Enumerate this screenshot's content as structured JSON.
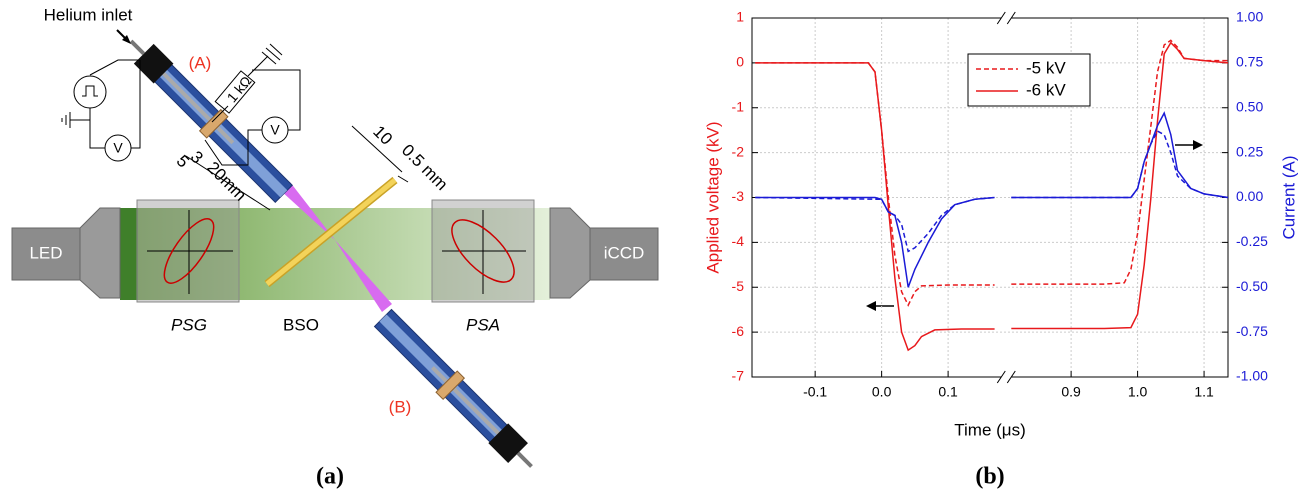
{
  "diagram": {
    "helium_inlet": "Helium inlet",
    "jet_a": "(A)",
    "jet_b": "(B)",
    "resistor": "1 kΩ",
    "voltmeter_left": "V",
    "voltmeter_right": "V",
    "dims": [
      "5",
      "3",
      "20mm"
    ],
    "plate_dims": [
      "10",
      "0.5 mm"
    ],
    "led": "LED",
    "iccd": "iCCD",
    "psg": "PSG",
    "bso": "BSO",
    "psa": "PSA"
  },
  "captions": [
    "(a)",
    "(b)"
  ],
  "chart_data": {
    "type": "line",
    "xlabel": "Time (μs)",
    "ylabel": "Applied voltage (kV)",
    "y2label": "Current (A)",
    "xlim": [
      -0.195,
      1.136
    ],
    "xbreak": [
      0.18,
      0.81
    ],
    "xticks": [
      -0.1,
      {
        "value": 0,
        "label": "0.0"
      },
      0.1,
      0.9,
      {
        "value": 1,
        "label": "1.0"
      },
      1.1
    ],
    "ylim": [
      -7,
      1
    ],
    "yticks": [
      1,
      0,
      -1,
      -2,
      -3,
      -4,
      -5,
      -6,
      -7
    ],
    "y2lim": [
      -1,
      1
    ],
    "y2ticks": [
      {
        "value": 1,
        "label": "1.00"
      },
      {
        "value": 0.75,
        "label": "0.75"
      },
      {
        "value": 0.5,
        "label": "0.50"
      },
      {
        "value": 0.25,
        "label": "0.25"
      },
      {
        "value": 0,
        "label": "0.00"
      },
      {
        "value": -0.25,
        "label": "-0.25"
      },
      {
        "value": -0.5,
        "label": "-0.50"
      },
      {
        "value": -0.75,
        "label": "-0.75"
      },
      {
        "value": -1,
        "label": "-1.00"
      }
    ],
    "ycolor": "#e8191c",
    "y2color": "#1b1bd6",
    "grid": true,
    "legend": "upper center",
    "series": [
      {
        "name": "-5 kV",
        "color": "#e8191c",
        "dash": true,
        "x": [
          -0.19,
          -0.02,
          -0.01,
          0,
          0.01,
          0.02,
          0.03,
          0.04,
          0.05,
          0.06,
          0.1,
          0.17,
          null,
          0.81,
          0.95,
          0.98,
          0.99,
          1.0,
          1.01,
          1.02,
          1.03,
          1.04,
          1.05,
          1.06,
          1.07,
          1.1,
          1.136
        ],
        "values": [
          0,
          0,
          -0.2,
          -1.5,
          -3.0,
          -4.3,
          -5.1,
          -5.4,
          -5.1,
          -4.97,
          -4.95,
          -4.95,
          null,
          -4.93,
          -4.93,
          -4.9,
          -4.6,
          -3.8,
          -2.6,
          -1.4,
          -0.2,
          0.4,
          0.5,
          0.35,
          0.1,
          0.05,
          0.05
        ]
      },
      {
        "name": "-6 kV",
        "color": "#e8191c",
        "dash": false,
        "x": [
          -0.19,
          -0.02,
          -0.01,
          0,
          0.01,
          0.02,
          0.03,
          0.04,
          0.05,
          0.06,
          0.08,
          0.12,
          0.17,
          null,
          0.81,
          0.95,
          0.99,
          1.0,
          1.01,
          1.02,
          1.03,
          1.04,
          1.05,
          1.06,
          1.07,
          1.1,
          1.136
        ],
        "values": [
          0,
          0,
          -0.2,
          -1.5,
          -3.2,
          -4.8,
          -6.0,
          -6.4,
          -6.3,
          -6.1,
          -5.95,
          -5.93,
          -5.93,
          null,
          -5.92,
          -5.92,
          -5.9,
          -5.6,
          -4.5,
          -3.0,
          -1.3,
          0.2,
          0.45,
          0.3,
          0.1,
          0.05,
          0.0
        ]
      },
      {
        "color": "#1b1bd6",
        "dash": true,
        "axis": "y2",
        "x": [
          -0.19,
          0,
          0.01,
          0.02,
          0.03,
          0.04,
          0.05,
          0.07,
          0.09,
          0.11,
          0.14,
          0.17,
          null,
          0.81,
          0.99,
          1.0,
          1.01,
          1.02,
          1.03,
          1.04,
          1.05,
          1.06,
          1.08,
          1.1,
          1.136
        ],
        "values": [
          0,
          -0.01,
          -0.08,
          -0.1,
          -0.15,
          -0.3,
          -0.28,
          -0.2,
          -0.1,
          -0.04,
          -0.01,
          0,
          null,
          0,
          0,
          0.05,
          0.2,
          0.3,
          0.37,
          0.35,
          0.25,
          0.12,
          0.05,
          0.02,
          0
        ]
      },
      {
        "color": "#1b1bd6",
        "dash": false,
        "axis": "y2",
        "x": [
          -0.19,
          -0.01,
          0,
          0.01,
          0.02,
          0.03,
          0.04,
          0.05,
          0.07,
          0.09,
          0.11,
          0.14,
          0.17,
          null,
          0.81,
          0.99,
          1.0,
          1.01,
          1.02,
          1.03,
          1.04,
          1.05,
          1.06,
          1.08,
          1.1,
          1.136
        ],
        "values": [
          0,
          0,
          -0.01,
          -0.08,
          -0.1,
          -0.25,
          -0.5,
          -0.4,
          -0.25,
          -0.12,
          -0.04,
          -0.01,
          0,
          null,
          0,
          0,
          0.05,
          0.2,
          0.3,
          0.4,
          0.47,
          0.35,
          0.15,
          0.05,
          0.02,
          0
        ]
      }
    ]
  }
}
